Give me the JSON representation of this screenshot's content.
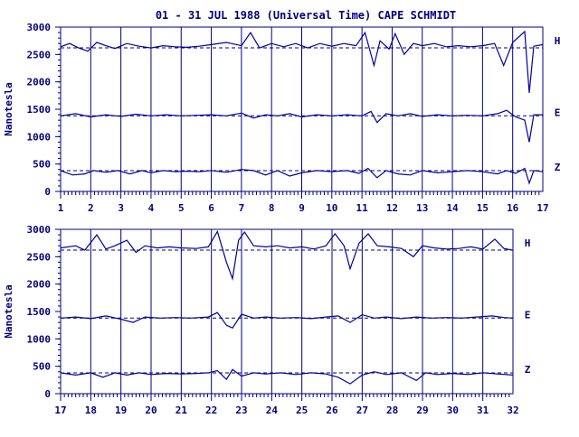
{
  "title": "01 - 31 JUL 1988 (Universal Time) CAPE SCHMIDT",
  "colors": {
    "ink": "#00007f",
    "trace": "#0000a0",
    "background": "#ffffff"
  },
  "chart_data": [
    {
      "type": "line",
      "ylabel": "Nanotesla",
      "ylim": [
        0,
        3000
      ],
      "yticks": [
        "3000",
        "2500",
        "2000",
        "1500",
        "1000",
        "500",
        "0"
      ],
      "xlim": [
        1,
        17
      ],
      "xticks": [
        "1",
        "2",
        "3",
        "4",
        "5",
        "6",
        "7",
        "8",
        "9",
        "10",
        "11",
        "12",
        "13",
        "14",
        "15",
        "16",
        "17"
      ],
      "series": [
        {
          "name": "H",
          "baseline": 2620,
          "points": [
            [
              1.0,
              2640
            ],
            [
              1.3,
              2700
            ],
            [
              1.6,
              2620
            ],
            [
              1.9,
              2560
            ],
            [
              2.2,
              2720
            ],
            [
              2.5,
              2660
            ],
            [
              2.8,
              2610
            ],
            [
              3.2,
              2700
            ],
            [
              3.6,
              2650
            ],
            [
              4.0,
              2620
            ],
            [
              4.4,
              2660
            ],
            [
              4.8,
              2640
            ],
            [
              5.2,
              2630
            ],
            [
              5.6,
              2650
            ],
            [
              6.0,
              2680
            ],
            [
              6.5,
              2720
            ],
            [
              7.0,
              2660
            ],
            [
              7.3,
              2900
            ],
            [
              7.6,
              2620
            ],
            [
              8.0,
              2700
            ],
            [
              8.4,
              2640
            ],
            [
              8.8,
              2700
            ],
            [
              9.2,
              2620
            ],
            [
              9.6,
              2700
            ],
            [
              10.0,
              2650
            ],
            [
              10.4,
              2700
            ],
            [
              10.8,
              2660
            ],
            [
              11.1,
              2900
            ],
            [
              11.4,
              2300
            ],
            [
              11.6,
              2750
            ],
            [
              11.9,
              2600
            ],
            [
              12.1,
              2880
            ],
            [
              12.4,
              2500
            ],
            [
              12.7,
              2700
            ],
            [
              13.0,
              2660
            ],
            [
              13.4,
              2700
            ],
            [
              13.8,
              2640
            ],
            [
              14.2,
              2660
            ],
            [
              14.6,
              2640
            ],
            [
              15.0,
              2660
            ],
            [
              15.4,
              2700
            ],
            [
              15.7,
              2300
            ],
            [
              16.0,
              2720
            ],
            [
              16.4,
              2920
            ],
            [
              16.55,
              1800
            ],
            [
              16.7,
              2650
            ],
            [
              17.0,
              2680
            ]
          ]
        },
        {
          "name": "E",
          "baseline": 1380,
          "points": [
            [
              1.0,
              1380
            ],
            [
              1.5,
              1420
            ],
            [
              2.0,
              1360
            ],
            [
              2.5,
              1400
            ],
            [
              3.0,
              1370
            ],
            [
              3.5,
              1410
            ],
            [
              4.0,
              1380
            ],
            [
              4.5,
              1400
            ],
            [
              5.0,
              1380
            ],
            [
              5.5,
              1390
            ],
            [
              6.0,
              1400
            ],
            [
              6.5,
              1380
            ],
            [
              7.0,
              1430
            ],
            [
              7.4,
              1340
            ],
            [
              7.8,
              1400
            ],
            [
              8.2,
              1380
            ],
            [
              8.6,
              1420
            ],
            [
              9.0,
              1360
            ],
            [
              9.5,
              1400
            ],
            [
              10.0,
              1380
            ],
            [
              10.5,
              1400
            ],
            [
              11.0,
              1380
            ],
            [
              11.3,
              1460
            ],
            [
              11.5,
              1260
            ],
            [
              11.8,
              1420
            ],
            [
              12.2,
              1380
            ],
            [
              12.6,
              1420
            ],
            [
              13.0,
              1370
            ],
            [
              13.5,
              1400
            ],
            [
              14.0,
              1380
            ],
            [
              14.5,
              1390
            ],
            [
              15.0,
              1380
            ],
            [
              15.5,
              1420
            ],
            [
              15.8,
              1480
            ],
            [
              16.1,
              1360
            ],
            [
              16.4,
              1300
            ],
            [
              16.55,
              900
            ],
            [
              16.7,
              1400
            ],
            [
              17.0,
              1400
            ]
          ]
        },
        {
          "name": "Z",
          "baseline": 380,
          "points": [
            [
              1.0,
              380
            ],
            [
              1.4,
              300
            ],
            [
              1.8,
              320
            ],
            [
              2.1,
              380
            ],
            [
              2.5,
              350
            ],
            [
              2.9,
              380
            ],
            [
              3.3,
              320
            ],
            [
              3.7,
              380
            ],
            [
              4.0,
              340
            ],
            [
              4.4,
              380
            ],
            [
              4.8,
              360
            ],
            [
              5.2,
              370
            ],
            [
              5.6,
              360
            ],
            [
              6.0,
              380
            ],
            [
              6.5,
              350
            ],
            [
              7.0,
              400
            ],
            [
              7.4,
              380
            ],
            [
              7.8,
              300
            ],
            [
              8.2,
              380
            ],
            [
              8.6,
              280
            ],
            [
              9.0,
              340
            ],
            [
              9.5,
              380
            ],
            [
              10.0,
              360
            ],
            [
              10.5,
              380
            ],
            [
              10.9,
              330
            ],
            [
              11.2,
              420
            ],
            [
              11.5,
              250
            ],
            [
              11.8,
              380
            ],
            [
              12.2,
              320
            ],
            [
              12.6,
              300
            ],
            [
              13.0,
              380
            ],
            [
              13.5,
              340
            ],
            [
              14.0,
              360
            ],
            [
              14.5,
              380
            ],
            [
              15.0,
              360
            ],
            [
              15.5,
              320
            ],
            [
              15.8,
              380
            ],
            [
              16.1,
              330
            ],
            [
              16.4,
              420
            ],
            [
              16.55,
              150
            ],
            [
              16.7,
              380
            ],
            [
              17.0,
              360
            ]
          ]
        }
      ]
    },
    {
      "type": "line",
      "ylabel": "Nanotesla",
      "ylim": [
        0,
        3000
      ],
      "yticks": [
        "3000",
        "2500",
        "2000",
        "1500",
        "1000",
        "500",
        "0"
      ],
      "xlim": [
        17,
        32
      ],
      "xticks": [
        "17",
        "18",
        "19",
        "20",
        "21",
        "22",
        "23",
        "24",
        "25",
        "26",
        "27",
        "28",
        "29",
        "30",
        "31",
        "32"
      ],
      "series": [
        {
          "name": "H",
          "baseline": 2620,
          "points": [
            [
              17.0,
              2660
            ],
            [
              17.5,
              2700
            ],
            [
              17.8,
              2620
            ],
            [
              18.2,
              2900
            ],
            [
              18.5,
              2640
            ],
            [
              18.8,
              2700
            ],
            [
              19.2,
              2800
            ],
            [
              19.5,
              2580
            ],
            [
              19.8,
              2700
            ],
            [
              20.2,
              2660
            ],
            [
              20.6,
              2680
            ],
            [
              21.0,
              2660
            ],
            [
              21.5,
              2650
            ],
            [
              21.9,
              2680
            ],
            [
              22.2,
              2960
            ],
            [
              22.5,
              2400
            ],
            [
              22.7,
              2100
            ],
            [
              22.9,
              2800
            ],
            [
              23.1,
              2950
            ],
            [
              23.4,
              2700
            ],
            [
              23.8,
              2680
            ],
            [
              24.2,
              2700
            ],
            [
              24.6,
              2660
            ],
            [
              25.0,
              2680
            ],
            [
              25.4,
              2640
            ],
            [
              25.8,
              2700
            ],
            [
              26.1,
              2920
            ],
            [
              26.4,
              2700
            ],
            [
              26.6,
              2280
            ],
            [
              26.9,
              2750
            ],
            [
              27.2,
              2920
            ],
            [
              27.5,
              2700
            ],
            [
              27.9,
              2680
            ],
            [
              28.3,
              2650
            ],
            [
              28.7,
              2500
            ],
            [
              29.0,
              2700
            ],
            [
              29.4,
              2660
            ],
            [
              29.8,
              2640
            ],
            [
              30.2,
              2650
            ],
            [
              30.6,
              2680
            ],
            [
              31.0,
              2640
            ],
            [
              31.4,
              2820
            ],
            [
              31.7,
              2650
            ],
            [
              32.0,
              2620
            ]
          ]
        },
        {
          "name": "E",
          "baseline": 1380,
          "points": [
            [
              17.0,
              1380
            ],
            [
              17.5,
              1400
            ],
            [
              18.0,
              1370
            ],
            [
              18.5,
              1420
            ],
            [
              19.0,
              1360
            ],
            [
              19.4,
              1300
            ],
            [
              19.8,
              1400
            ],
            [
              20.3,
              1380
            ],
            [
              20.8,
              1390
            ],
            [
              21.3,
              1380
            ],
            [
              21.9,
              1400
            ],
            [
              22.2,
              1480
            ],
            [
              22.5,
              1250
            ],
            [
              22.7,
              1200
            ],
            [
              23.0,
              1450
            ],
            [
              23.4,
              1380
            ],
            [
              23.8,
              1400
            ],
            [
              24.3,
              1380
            ],
            [
              24.8,
              1390
            ],
            [
              25.3,
              1370
            ],
            [
              25.8,
              1400
            ],
            [
              26.2,
              1420
            ],
            [
              26.6,
              1300
            ],
            [
              27.0,
              1440
            ],
            [
              27.4,
              1380
            ],
            [
              27.8,
              1400
            ],
            [
              28.3,
              1370
            ],
            [
              28.8,
              1400
            ],
            [
              29.3,
              1380
            ],
            [
              29.8,
              1390
            ],
            [
              30.3,
              1380
            ],
            [
              30.8,
              1400
            ],
            [
              31.3,
              1420
            ],
            [
              31.7,
              1390
            ],
            [
              32.0,
              1380
            ]
          ]
        },
        {
          "name": "Z",
          "baseline": 380,
          "points": [
            [
              17.0,
              380
            ],
            [
              17.5,
              340
            ],
            [
              18.0,
              380
            ],
            [
              18.4,
              300
            ],
            [
              18.8,
              380
            ],
            [
              19.2,
              340
            ],
            [
              19.6,
              380
            ],
            [
              20.0,
              350
            ],
            [
              20.5,
              370
            ],
            [
              21.0,
              360
            ],
            [
              21.5,
              370
            ],
            [
              21.9,
              380
            ],
            [
              22.2,
              420
            ],
            [
              22.5,
              260
            ],
            [
              22.7,
              440
            ],
            [
              23.0,
              320
            ],
            [
              23.4,
              380
            ],
            [
              23.8,
              360
            ],
            [
              24.3,
              380
            ],
            [
              24.8,
              350
            ],
            [
              25.3,
              380
            ],
            [
              25.8,
              360
            ],
            [
              26.2,
              300
            ],
            [
              26.6,
              180
            ],
            [
              27.0,
              340
            ],
            [
              27.4,
              400
            ],
            [
              27.8,
              350
            ],
            [
              28.3,
              380
            ],
            [
              28.8,
              240
            ],
            [
              29.1,
              380
            ],
            [
              29.5,
              350
            ],
            [
              30.0,
              370
            ],
            [
              30.5,
              350
            ],
            [
              31.0,
              380
            ],
            [
              31.5,
              360
            ],
            [
              32.0,
              340
            ]
          ]
        }
      ]
    }
  ]
}
